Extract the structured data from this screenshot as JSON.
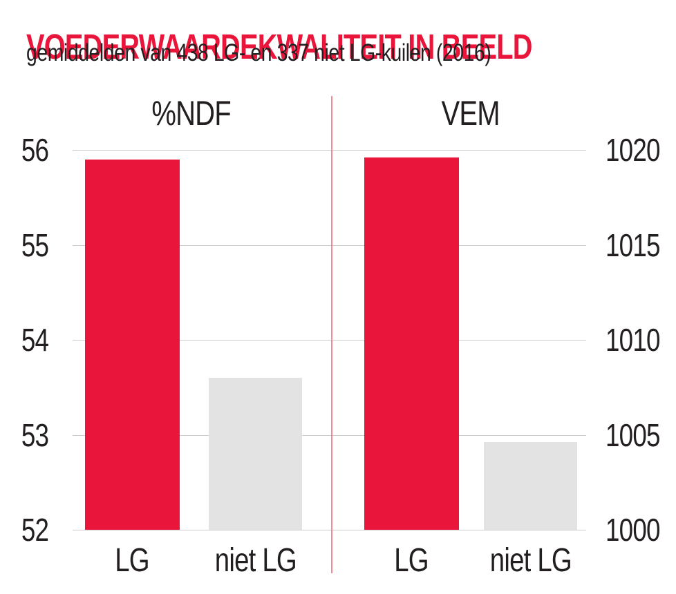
{
  "header": {
    "title": "VOEDERWAARDEKWALITEIT IN BEELD",
    "subtitle": "gemiddelden van 438 LG- en 337 niet LG-kuilen (2016)"
  },
  "colors": {
    "title_red": "#E9153B",
    "bar_red": "#E9153B",
    "bar_gray": "#E3E3E4",
    "gridline_gray": "#CBCBCB",
    "divider_pink": "#F28B95",
    "text_dark": "#231F20",
    "background": "#FFFFFF"
  },
  "chart_data": [
    {
      "type": "bar",
      "title": "%NDF",
      "categories": [
        "LG",
        "niet LG"
      ],
      "values": [
        55.9,
        53.6
      ],
      "ylim": [
        52,
        56
      ],
      "yticks": [
        56,
        55,
        54,
        53,
        52
      ],
      "ytick_side": "left",
      "bar_colors": [
        "#E9153B",
        "#E3E3E4"
      ],
      "grid": true,
      "legend": "none",
      "xlabel": "",
      "ylabel": ""
    },
    {
      "type": "bar",
      "title": "VEM",
      "categories": [
        "LG",
        "niet LG"
      ],
      "values": [
        1019.6,
        1004.6
      ],
      "ylim": [
        1000,
        1020
      ],
      "yticks": [
        1020,
        1015,
        1010,
        1005,
        1000
      ],
      "ytick_side": "right",
      "bar_colors": [
        "#E9153B",
        "#E3E3E4"
      ],
      "grid": true,
      "legend": "none",
      "xlabel": "",
      "ylabel": ""
    }
  ]
}
